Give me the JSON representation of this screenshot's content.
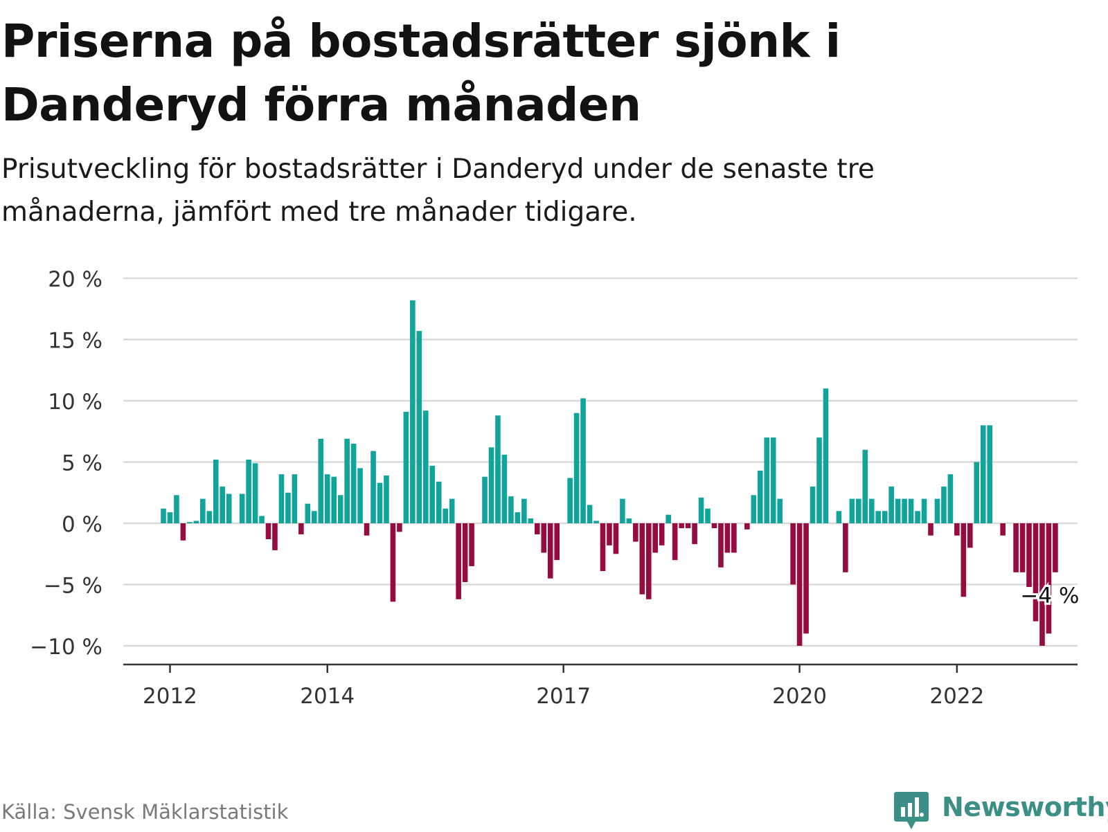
{
  "header": {
    "title": "Priserna på bostadsrätter sjönk i Danderyd förra månaden",
    "subtitle": "Prisutveckling för bostadsrätter i Danderyd under de senaste tre månaderna, jämfört med tre månader tidigare."
  },
  "footer": {
    "source": "Källa: Svensk Mäklarstatistik",
    "brand": "Newsworthy",
    "brand_icon": "newsworthy-logo-icon"
  },
  "chart_data": {
    "type": "bar",
    "start": "2011-12",
    "ylim": [
      -11.5,
      20
    ],
    "yticks": [
      20,
      15,
      10,
      5,
      0,
      -5,
      -10
    ],
    "ytick_labels": [
      "20 %",
      "15 %",
      "10 %",
      "5 %",
      "0 %",
      "−5 %",
      "−10 %"
    ],
    "xticks": [
      "2012-01",
      "2014-01",
      "2017-01",
      "2020-01",
      "2022-01"
    ],
    "xtick_labels": [
      "2012",
      "2014",
      "2017",
      "2020",
      "2022"
    ],
    "grid": true,
    "colors": {
      "positive": "#11a49b",
      "negative": "#960c41",
      "grid": "#d9d9d9",
      "axis": "#333333"
    },
    "annotation": {
      "label": "−4 %",
      "value": -4
    },
    "values": [
      1.2,
      0.9,
      2.3,
      -1.4,
      0.1,
      0.2,
      2.0,
      1.0,
      5.2,
      3.0,
      2.4,
      0,
      2.4,
      5.2,
      4.9,
      0.6,
      -1.3,
      -2.2,
      4.0,
      2.5,
      4.0,
      -0.9,
      1.6,
      1.0,
      6.9,
      4.0,
      3.8,
      2.3,
      6.9,
      6.5,
      4.5,
      -1.0,
      5.9,
      3.3,
      3.9,
      -6.4,
      -0.7,
      9.1,
      18.2,
      15.7,
      9.2,
      4.7,
      3.4,
      1.2,
      2.0,
      -6.2,
      -4.8,
      -3.5,
      0,
      3.8,
      6.2,
      8.8,
      5.6,
      2.2,
      0.9,
      2.0,
      0.4,
      -0.9,
      -2.4,
      -4.5,
      -3.0,
      0,
      3.7,
      9.0,
      10.2,
      1.5,
      0.2,
      -3.9,
      -1.8,
      -2.5,
      2.0,
      0.4,
      -1.5,
      -5.8,
      -6.2,
      -2.4,
      -1.8,
      0.7,
      -3.0,
      -0.4,
      -0.4,
      -1.7,
      2.1,
      1.2,
      -0.4,
      -3.6,
      -2.4,
      -2.4,
      0,
      -0.5,
      2.3,
      4.3,
      7.0,
      7.0,
      2.0,
      0,
      -5.0,
      -10.0,
      -9.0,
      3.0,
      7.0,
      11.0,
      0,
      1.0,
      -4.0,
      2.0,
      2.0,
      6.0,
      2.0,
      1.0,
      1.0,
      3.0,
      2.0,
      2.0,
      2.0,
      1.0,
      2.0,
      -1.0,
      2.0,
      3.0,
      4.0,
      -1.0,
      -6.0,
      -2.0,
      5.0,
      8.0,
      8.0,
      0,
      -1.0,
      0,
      -4.0,
      -4.0,
      -5.2,
      -8.0,
      -10.0,
      -9.0,
      -4.0
    ]
  }
}
